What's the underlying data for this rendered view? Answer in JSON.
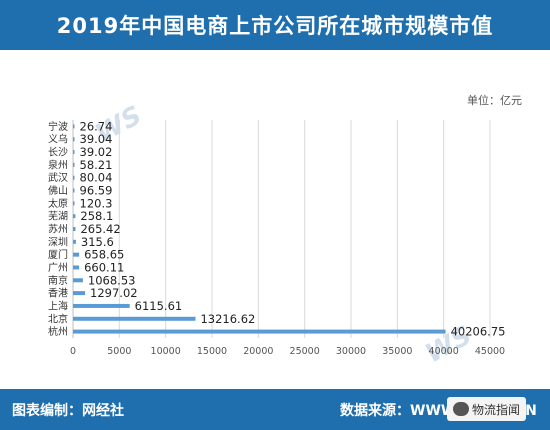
{
  "header": {
    "title": "2019年中国电商上市公司所在城市规模市值"
  },
  "unit_label": "单位：亿元",
  "watermark": {
    "brand": "WS网经社"
  },
  "footer": {
    "left": "图表编制：网经社",
    "right": "数据来源：WWW.100EC.CN",
    "badge": "物流指闻"
  },
  "colors": {
    "header_bg": "#1f6fae",
    "bar": "#5b9bd5",
    "grid": "#d9d9d9"
  },
  "chart_data": {
    "type": "bar",
    "orientation": "horizontal",
    "title": "2019年中国电商上市公司所在城市规模市值",
    "categories": [
      "宁波",
      "义乌",
      "长沙",
      "泉州",
      "武汉",
      "佛山",
      "太原",
      "芜湖",
      "苏州",
      "深圳",
      "厦门",
      "广州",
      "南京",
      "香港",
      "上海",
      "北京",
      "杭州"
    ],
    "values": [
      26.74,
      39.04,
      39.02,
      58.21,
      80.04,
      96.59,
      120.3,
      258.1,
      265.42,
      315.6,
      658.65,
      660.11,
      1068.53,
      1297.02,
      6115.61,
      13216.62,
      40206.75
    ],
    "labels": [
      "26.74",
      "39.04",
      "39.02",
      "58.21",
      "80.04",
      "96.59",
      "120.3",
      "258.1",
      "265.42",
      "315.6",
      "658.65",
      "660.11",
      "1068.53",
      "1297.02",
      "6115.61",
      "13216.62",
      "40206.75"
    ],
    "xlim": [
      0,
      45000
    ],
    "xticks": [
      "0",
      "5000",
      "10000",
      "15000",
      "20000",
      "25000",
      "30000",
      "35000",
      "40000",
      "45000"
    ],
    "xtick_values": [
      0,
      5000,
      10000,
      15000,
      20000,
      25000,
      30000,
      35000,
      40000,
      45000
    ],
    "unit": "单位：亿元",
    "grid": true,
    "legend": false
  }
}
